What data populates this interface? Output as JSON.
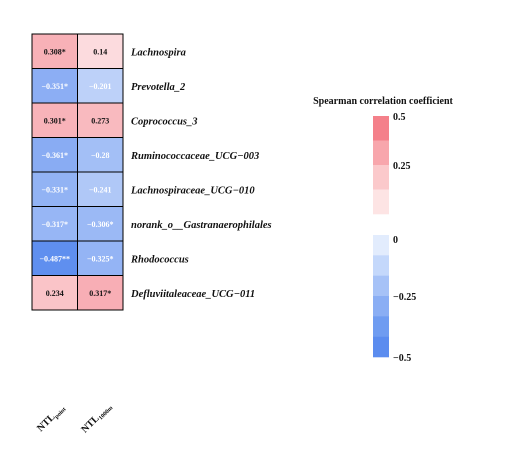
{
  "chart_data": {
    "type": "heatmap",
    "columns": [
      {
        "main": "NTL",
        "sub": "point"
      },
      {
        "main": "NTL",
        "sub": "1000m"
      }
    ],
    "rows": [
      "Lachnospira",
      "Prevotella_2",
      "Coprococcus_3",
      "Ruminococcaceae_UCG−003",
      "Lachnospiraceae_UCG−010",
      "norank_o__Gastranaerophilales",
      "Rhodococcus",
      "Defluviitaleaceae_UCG−011"
    ],
    "values": [
      [
        0.308,
        0.14
      ],
      [
        -0.351,
        -0.201
      ],
      [
        0.301,
        0.273
      ],
      [
        -0.361,
        -0.28
      ],
      [
        -0.331,
        -0.241
      ],
      [
        -0.317,
        -0.306
      ],
      [
        -0.487,
        -0.325
      ],
      [
        0.234,
        0.317
      ]
    ],
    "labels": [
      [
        "0.308*",
        "0.14"
      ],
      [
        "−0.351*",
        "−0.201"
      ],
      [
        "0.301*",
        "0.273"
      ],
      [
        "−0.361*",
        "−0.28"
      ],
      [
        "−0.331*",
        "−0.241"
      ],
      [
        "−0.317*",
        "−0.306*"
      ],
      [
        "−0.487**",
        "−0.325*"
      ],
      [
        "0.234",
        "0.317*"
      ]
    ],
    "legend": {
      "title": "Spearman correlation coefficient",
      "range": [
        -0.5,
        0.5
      ],
      "ticks": [
        {
          "value": 0.5,
          "label": "0.5"
        },
        {
          "value": 0.25,
          "label": "0.25"
        },
        {
          "value": 0,
          "label": "0"
        },
        {
          "value": -0.25,
          "label": "−0.25"
        },
        {
          "value": -0.5,
          "label": "−0.5"
        }
      ],
      "positive_bins": [
        "#f4808a",
        "#f8a6ac",
        "#fbc9cb",
        "#fde4e4"
      ],
      "negative_bins": [
        "#e2ecfd",
        "#c4d8fb",
        "#a6c2f7",
        "#8aaef4",
        "#6f9cf1",
        "#5b8cef"
      ]
    },
    "colors": {
      "positive_max": "#f4808a",
      "negative_max": "#5b8cef",
      "zero": "#ffffff"
    }
  }
}
